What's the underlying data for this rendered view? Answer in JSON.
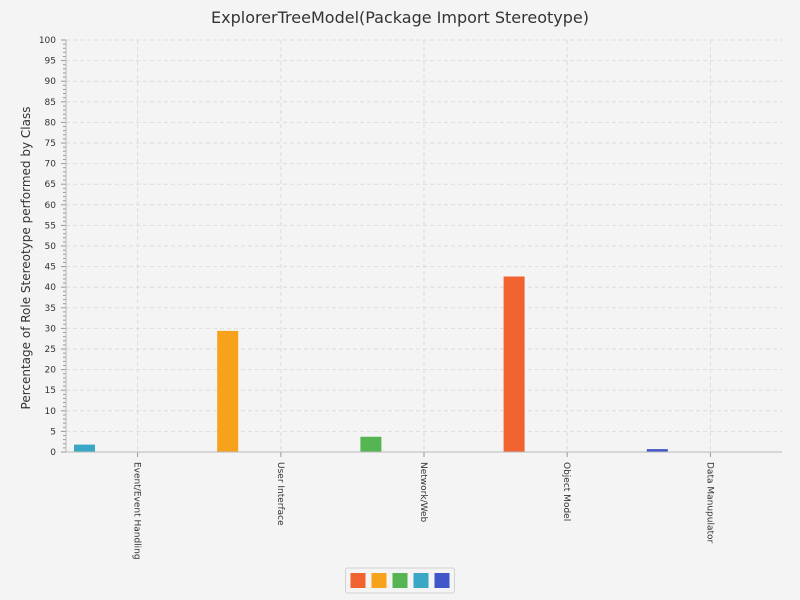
{
  "chart_data": {
    "type": "bar",
    "title": "ExplorerTreeModel(Package Import Stereotype)",
    "xlabel": "",
    "ylabel": "Percentage of Role Stereotype performed by Class",
    "ylim": [
      0,
      100
    ],
    "ytick_step": 5,
    "grid": true,
    "legend": "bottom-center",
    "categories": [
      "Event/Event Handling",
      "User Interface",
      "Network/Web",
      "Object Model",
      "Data Manupulator"
    ],
    "series": [
      {
        "color": "#f06230",
        "values": [
          0,
          0,
          0,
          42.6,
          0
        ]
      },
      {
        "color": "#f7a21b",
        "values": [
          0,
          29.4,
          0,
          0,
          0
        ]
      },
      {
        "color": "#55b552",
        "values": [
          0,
          0,
          3.7,
          0,
          0
        ]
      },
      {
        "color": "#3aa7c4",
        "values": [
          1.8,
          0,
          0,
          0,
          0
        ]
      },
      {
        "color": "#4156c8",
        "values": [
          0,
          0,
          0,
          0,
          0.7
        ]
      }
    ],
    "bar_series_per_category": [
      3,
      1,
      2,
      0,
      4
    ]
  }
}
